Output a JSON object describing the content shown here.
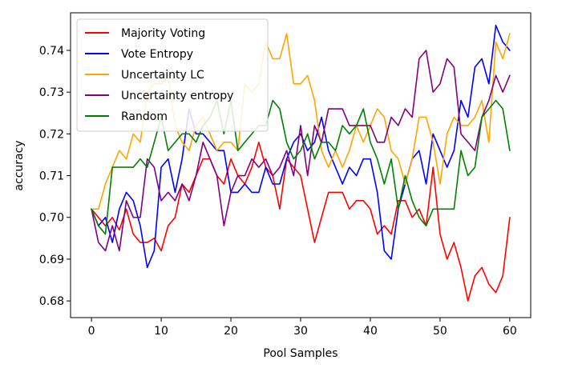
{
  "chart_data": {
    "type": "line",
    "title": "",
    "xlabel": "Pool Samples",
    "ylabel": "accuracy",
    "xlim": [
      -3,
      63
    ],
    "ylim": [
      0.676,
      0.749
    ],
    "xticks": [
      0,
      10,
      20,
      30,
      40,
      50,
      60
    ],
    "yticks": [
      0.68,
      0.69,
      0.7,
      0.71,
      0.72,
      0.73,
      0.74
    ],
    "ytick_labels": [
      "0.68",
      "0.69",
      "0.70",
      "0.71",
      "0.72",
      "0.73",
      "0.74"
    ],
    "grid": false,
    "legend_position": "upper-left",
    "x": [
      0,
      1,
      2,
      3,
      4,
      5,
      6,
      7,
      8,
      9,
      10,
      11,
      12,
      13,
      14,
      15,
      16,
      17,
      18,
      19,
      20,
      21,
      22,
      23,
      24,
      25,
      26,
      27,
      28,
      29,
      30,
      31,
      32,
      33,
      34,
      35,
      36,
      37,
      38,
      39,
      40,
      41,
      42,
      43,
      44,
      45,
      46,
      47,
      48,
      49,
      50,
      51,
      52,
      53,
      54,
      55,
      56,
      57,
      58,
      59,
      60
    ],
    "series": [
      {
        "name": "Majority Voting",
        "color": "#ff0000",
        "values": [
          0.702,
          0.7,
          0.698,
          0.7,
          0.697,
          0.702,
          0.696,
          0.694,
          0.694,
          0.695,
          0.692,
          0.698,
          0.7,
          0.708,
          0.706,
          0.71,
          0.714,
          0.714,
          0.71,
          0.708,
          0.714,
          0.71,
          0.708,
          0.712,
          0.718,
          0.712,
          0.71,
          0.702,
          0.714,
          0.712,
          0.71,
          0.702,
          0.694,
          0.7,
          0.706,
          0.706,
          0.706,
          0.702,
          0.704,
          0.704,
          0.702,
          0.696,
          0.698,
          0.696,
          0.704,
          0.704,
          0.7,
          0.702,
          0.698,
          0.712,
          0.696,
          0.69,
          0.694,
          0.688,
          0.68,
          0.686,
          0.688,
          0.684,
          0.682,
          0.686,
          0.7
        ]
      },
      {
        "name": "Vote Entropy",
        "color": "#0000ff",
        "values": [
          0.702,
          0.698,
          0.7,
          0.694,
          0.702,
          0.706,
          0.704,
          0.698,
          0.688,
          0.692,
          0.712,
          0.714,
          0.706,
          0.714,
          0.726,
          0.72,
          0.72,
          0.718,
          0.716,
          0.716,
          0.706,
          0.706,
          0.708,
          0.706,
          0.706,
          0.712,
          0.708,
          0.708,
          0.714,
          0.718,
          0.72,
          0.716,
          0.718,
          0.724,
          0.716,
          0.712,
          0.708,
          0.712,
          0.71,
          0.714,
          0.714,
          0.706,
          0.692,
          0.69,
          0.702,
          0.708,
          0.714,
          0.716,
          0.708,
          0.72,
          0.716,
          0.712,
          0.716,
          0.728,
          0.724,
          0.736,
          0.738,
          0.732,
          0.746,
          0.742,
          0.74
        ]
      },
      {
        "name": "Uncertainty LC",
        "color": "#ffa500",
        "values": [
          0.702,
          0.702,
          0.708,
          0.712,
          0.716,
          0.714,
          0.72,
          0.718,
          0.73,
          0.732,
          0.732,
          0.734,
          0.722,
          0.718,
          0.716,
          0.722,
          0.724,
          0.72,
          0.716,
          0.718,
          0.718,
          0.716,
          0.732,
          0.73,
          0.732,
          0.742,
          0.738,
          0.738,
          0.744,
          0.732,
          0.732,
          0.734,
          0.728,
          0.716,
          0.712,
          0.716,
          0.712,
          0.716,
          0.722,
          0.718,
          0.722,
          0.726,
          0.724,
          0.716,
          0.714,
          0.708,
          0.714,
          0.724,
          0.724,
          0.718,
          0.708,
          0.72,
          0.724,
          0.722,
          0.722,
          0.724,
          0.728,
          0.718,
          0.742,
          0.738,
          0.744
        ]
      },
      {
        "name": "Uncertainty entropy",
        "color": "#800080",
        "values": [
          0.702,
          0.694,
          0.692,
          0.698,
          0.692,
          0.704,
          0.7,
          0.7,
          0.714,
          0.712,
          0.704,
          0.706,
          0.704,
          0.708,
          0.704,
          0.71,
          0.718,
          0.714,
          0.71,
          0.698,
          0.706,
          0.71,
          0.71,
          0.714,
          0.712,
          0.714,
          0.71,
          0.712,
          0.716,
          0.71,
          0.722,
          0.71,
          0.722,
          0.718,
          0.726,
          0.726,
          0.726,
          0.722,
          0.722,
          0.722,
          0.722,
          0.718,
          0.718,
          0.724,
          0.722,
          0.726,
          0.724,
          0.738,
          0.74,
          0.73,
          0.732,
          0.738,
          0.736,
          0.72,
          0.718,
          0.716,
          0.724,
          0.728,
          0.734,
          0.73,
          0.734
        ]
      },
      {
        "name": "Random",
        "color": "#008000",
        "values": [
          0.702,
          0.698,
          0.696,
          0.712,
          0.712,
          0.712,
          0.712,
          0.714,
          0.712,
          0.718,
          0.724,
          0.716,
          0.718,
          0.72,
          0.72,
          0.718,
          0.722,
          0.724,
          0.728,
          0.72,
          0.728,
          0.716,
          0.718,
          0.72,
          0.722,
          0.722,
          0.728,
          0.726,
          0.718,
          0.714,
          0.716,
          0.72,
          0.714,
          0.718,
          0.718,
          0.716,
          0.722,
          0.72,
          0.722,
          0.726,
          0.718,
          0.714,
          0.708,
          0.714,
          0.702,
          0.71,
          0.704,
          0.7,
          0.698,
          0.702,
          0.702,
          0.702,
          0.702,
          0.716,
          0.71,
          0.712,
          0.724,
          0.726,
          0.728,
          0.726,
          0.716
        ]
      }
    ]
  }
}
